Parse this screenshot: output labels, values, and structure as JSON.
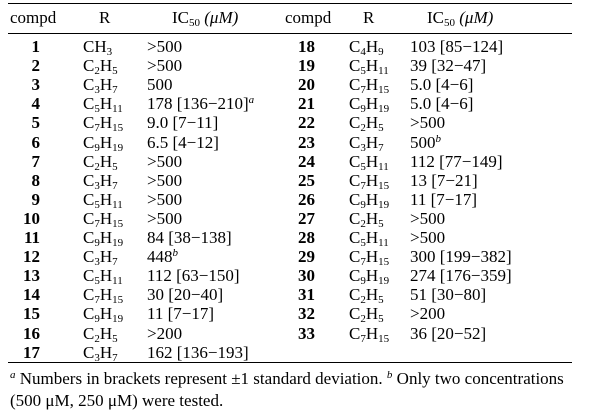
{
  "header": {
    "compd": "compd",
    "r": "R",
    "ic50_prefix": "IC",
    "ic50_sub": "50",
    "ic50_unit": " (μM)"
  },
  "left_rows": [
    {
      "compd": "1",
      "r_base": "CH",
      "r_sub": "3",
      "ic": ">500",
      "sup": ""
    },
    {
      "compd": "2",
      "r_base": "C",
      "r_sub": "2",
      "r_h": "H",
      "r_sub2": "5",
      "ic": ">500",
      "sup": ""
    },
    {
      "compd": "3",
      "r_base": "C",
      "r_sub": "3",
      "r_h": "H",
      "r_sub2": "7",
      "ic": "500",
      "sup": ""
    },
    {
      "compd": "4",
      "r_base": "C",
      "r_sub": "5",
      "r_h": "H",
      "r_sub2": "11",
      "ic": "178 [136−210]",
      "sup": "a"
    },
    {
      "compd": "5",
      "r_base": "C",
      "r_sub": "7",
      "r_h": "H",
      "r_sub2": "15",
      "ic": "9.0 [7−11]",
      "sup": ""
    },
    {
      "compd": "6",
      "r_base": "C",
      "r_sub": "9",
      "r_h": "H",
      "r_sub2": "19",
      "ic": "6.5 [4−12]",
      "sup": ""
    },
    {
      "compd": "7",
      "r_base": "C",
      "r_sub": "2",
      "r_h": "H",
      "r_sub2": "5",
      "ic": ">500",
      "sup": ""
    },
    {
      "compd": "8",
      "r_base": "C",
      "r_sub": "3",
      "r_h": "H",
      "r_sub2": "7",
      "ic": ">500",
      "sup": ""
    },
    {
      "compd": "9",
      "r_base": "C",
      "r_sub": "5",
      "r_h": "H",
      "r_sub2": "11",
      "ic": ">500",
      "sup": ""
    },
    {
      "compd": "10",
      "r_base": "C",
      "r_sub": "7",
      "r_h": "H",
      "r_sub2": "15",
      "ic": ">500",
      "sup": ""
    },
    {
      "compd": "11",
      "r_base": "C",
      "r_sub": "9",
      "r_h": "H",
      "r_sub2": "19",
      "ic": "84 [38−138]",
      "sup": ""
    },
    {
      "compd": "12",
      "r_base": "C",
      "r_sub": "3",
      "r_h": "H",
      "r_sub2": "7",
      "ic": "448",
      "sup": "b"
    },
    {
      "compd": "13",
      "r_base": "C",
      "r_sub": "5",
      "r_h": "H",
      "r_sub2": "11",
      "ic": "112 [63−150]",
      "sup": ""
    },
    {
      "compd": "14",
      "r_base": "C",
      "r_sub": "7",
      "r_h": "H",
      "r_sub2": "15",
      "ic": "30 [20−40]",
      "sup": ""
    },
    {
      "compd": "15",
      "r_base": "C",
      "r_sub": "9",
      "r_h": "H",
      "r_sub2": "19",
      "ic": "11 [7−17]",
      "sup": ""
    },
    {
      "compd": "16",
      "r_base": "C",
      "r_sub": "2",
      "r_h": "H",
      "r_sub2": "5",
      "ic": ">200",
      "sup": ""
    },
    {
      "compd": "17",
      "r_base": "C",
      "r_sub": "3",
      "r_h": "H",
      "r_sub2": "7",
      "ic": "162 [136−193]",
      "sup": ""
    }
  ],
  "right_rows": [
    {
      "compd": "18",
      "r_base": "C",
      "r_sub": "4",
      "r_h": "H",
      "r_sub2": "9",
      "ic": "103 [85−124]",
      "sup": ""
    },
    {
      "compd": "19",
      "r_base": "C",
      "r_sub": "5",
      "r_h": "H",
      "r_sub2": "11",
      "ic": "39 [32−47]",
      "sup": ""
    },
    {
      "compd": "20",
      "r_base": "C",
      "r_sub": "7",
      "r_h": "H",
      "r_sub2": "15",
      "ic": "5.0 [4−6]",
      "sup": ""
    },
    {
      "compd": "21",
      "r_base": "C",
      "r_sub": "9",
      "r_h": "H",
      "r_sub2": "19",
      "ic": "5.0 [4−6]",
      "sup": ""
    },
    {
      "compd": "22",
      "r_base": "C",
      "r_sub": "2",
      "r_h": "H",
      "r_sub2": "5",
      "ic": ">500",
      "sup": ""
    },
    {
      "compd": "23",
      "r_base": "C",
      "r_sub": "3",
      "r_h": "H",
      "r_sub2": "7",
      "ic": "500",
      "sup": "b"
    },
    {
      "compd": "24",
      "r_base": "C",
      "r_sub": "5",
      "r_h": "H",
      "r_sub2": "11",
      "ic": "112 [77−149]",
      "sup": ""
    },
    {
      "compd": "25",
      "r_base": "C",
      "r_sub": "7",
      "r_h": "H",
      "r_sub2": "15",
      "ic": "13 [7−21]",
      "sup": ""
    },
    {
      "compd": "26",
      "r_base": "C",
      "r_sub": "9",
      "r_h": "H",
      "r_sub2": "19",
      "ic": "11 [7−17]",
      "sup": ""
    },
    {
      "compd": "27",
      "r_base": "C",
      "r_sub": "2",
      "r_h": "H",
      "r_sub2": "5",
      "ic": ">500",
      "sup": ""
    },
    {
      "compd": "28",
      "r_base": "C",
      "r_sub": "5",
      "r_h": "H",
      "r_sub2": "11",
      "ic": ">500",
      "sup": ""
    },
    {
      "compd": "29",
      "r_base": "C",
      "r_sub": "7",
      "r_h": "H",
      "r_sub2": "15",
      "ic": "300 [199−382]",
      "sup": ""
    },
    {
      "compd": "30",
      "r_base": "C",
      "r_sub": "9",
      "r_h": "H",
      "r_sub2": "19",
      "ic": "274 [176−359]",
      "sup": ""
    },
    {
      "compd": "31",
      "r_base": "C",
      "r_sub": "2",
      "r_h": "H",
      "r_sub2": "5",
      "ic": "51 [30−80]",
      "sup": ""
    },
    {
      "compd": "32",
      "r_base": "C",
      "r_sub": "2",
      "r_h": "H",
      "r_sub2": "5",
      "ic": ">200",
      "sup": ""
    },
    {
      "compd": "33",
      "r_base": "C",
      "r_sub": "7",
      "r_h": "H",
      "r_sub2": "15",
      "ic": "36 [20−52]",
      "sup": ""
    }
  ],
  "footnote": {
    "mark_a": "a",
    "text_a": " Numbers in brackets represent ±1 standard deviation. ",
    "mark_b": "b",
    "text_b": " Only two concentrations (500 μM, 250 μM) were tested."
  }
}
